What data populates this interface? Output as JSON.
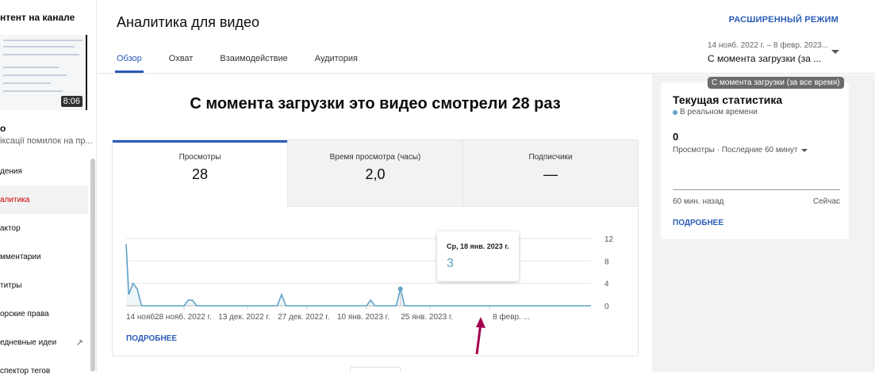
{
  "sidebar": {
    "title": "нтент на канале",
    "thumbnail_duration": "8:06",
    "video_title": "о",
    "video_subtitle": "іксації помилок на пр...",
    "items": [
      {
        "label": "дения"
      },
      {
        "label": "алитика",
        "active": true
      },
      {
        "label": "актор"
      },
      {
        "label": "мментарии"
      },
      {
        "label": "титры"
      },
      {
        "label": "орские права"
      },
      {
        "label": "едневные идеи",
        "icon": "external-link-icon"
      },
      {
        "label": "спектор тегов"
      }
    ]
  },
  "header": {
    "title": "Аналитика для видео",
    "advanced_mode": "РАСШИРЕННЫЙ РЕЖИМ",
    "tabs": [
      {
        "label": "Обзор",
        "active": true
      },
      {
        "label": "Охват"
      },
      {
        "label": "Взаимодействие"
      },
      {
        "label": "Аудитория"
      }
    ],
    "date_range": "14 нояб. 2022 г. – 8 февр. 2023...",
    "period": "С момента загрузки (за ...",
    "period_tooltip": "С момента загрузки (за все время)"
  },
  "main": {
    "headline": "С момента загрузки это видео смотрели 28 раз",
    "metrics": [
      {
        "label": "Просмотры",
        "value": "28"
      },
      {
        "label": "Время просмотра (часы)",
        "value": "2,0"
      },
      {
        "label": "Подписчики",
        "value": "—"
      }
    ],
    "more": "ПОДРОБНЕЕ",
    "tooltip": {
      "date": "Ср, 18 янв. 2023 г.",
      "value": "3"
    }
  },
  "colors": {
    "accent": "#2b5cb8",
    "line": "#5fa3c8",
    "arrow": "#a3004f"
  },
  "chart_data": {
    "type": "area",
    "ylim": [
      0,
      12
    ],
    "yticks": [
      0,
      4,
      8,
      12
    ],
    "grid": true,
    "xtick_labels": [
      "14 нояб...",
      "28 нояб. 2022 г.",
      "13 дек. 2022 г.",
      "27 дек. 2022 г.",
      "10 янв. 2023 г.",
      "25 янв. 2023 г.",
      "8 февр. ..."
    ],
    "xtick_dates": [
      "2022-11-14",
      "2022-11-28",
      "2022-12-13",
      "2022-12-27",
      "2023-01-10",
      "2023-01-25",
      "2023-02-08"
    ],
    "points": [
      [
        "2022-11-14",
        11
      ],
      [
        "2022-11-15",
        2
      ],
      [
        "2022-11-16",
        4
      ],
      [
        "2022-11-17",
        3
      ],
      [
        "2022-11-18",
        0
      ],
      [
        "2022-11-28",
        0
      ],
      [
        "2022-11-29",
        1
      ],
      [
        "2022-11-30",
        1
      ],
      [
        "2022-12-01",
        0
      ],
      [
        "2022-12-20",
        0
      ],
      [
        "2022-12-21",
        2
      ],
      [
        "2022-12-22",
        0
      ],
      [
        "2023-01-10",
        0
      ],
      [
        "2023-01-11",
        1
      ],
      [
        "2023-01-12",
        0
      ],
      [
        "2023-01-17",
        0
      ],
      [
        "2023-01-18",
        3
      ],
      [
        "2023-01-19",
        0
      ],
      [
        "2023-02-08",
        0
      ]
    ],
    "highlight": "2023-01-18"
  },
  "realtime": {
    "title": "Текущая статистика",
    "subtitle": "В реальном времени",
    "value": "0",
    "metric": "Просмотры · Последние 60 минут",
    "from": "60 мин. назад",
    "to": "Сейчас",
    "more": "ПОДРОБНЕЕ"
  }
}
